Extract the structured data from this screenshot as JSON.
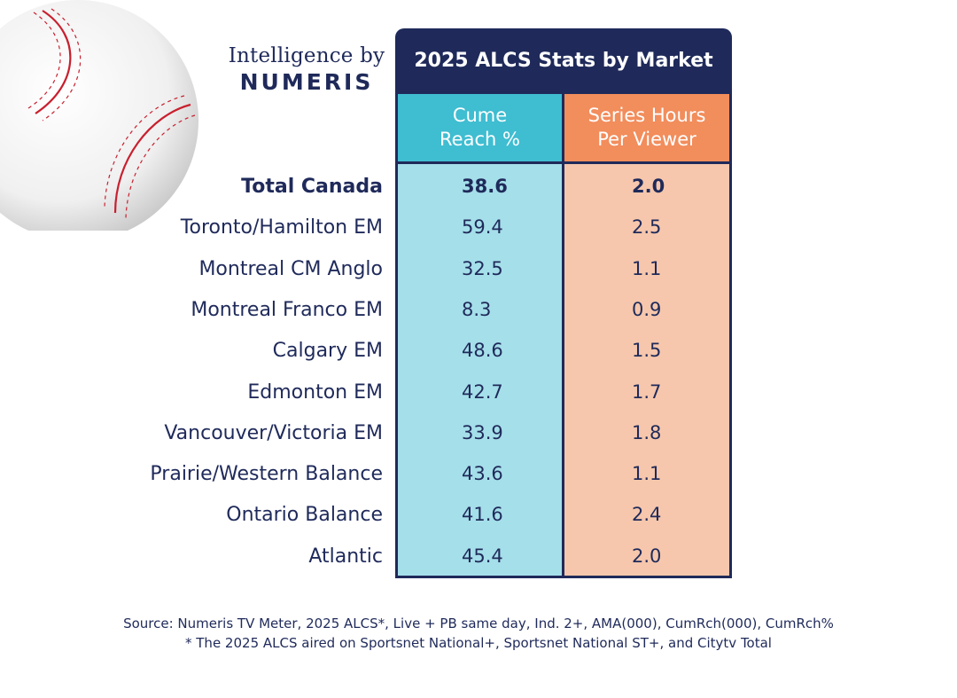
{
  "brand": {
    "line1": "Intelligence by",
    "line2": "NUMERIS"
  },
  "chart_data": {
    "type": "table",
    "title": "2025 ALCS Stats by Market",
    "columns": [
      "Cume Reach %",
      "Series Hours Per Viewer"
    ],
    "column_lines": [
      [
        "Cume",
        "Reach %"
      ],
      [
        "Series Hours",
        "Per Viewer"
      ]
    ],
    "rows": [
      {
        "market": "Total Canada",
        "cume_reach": "38.6",
        "hours_per_viewer": "2.0",
        "bold": true
      },
      {
        "market": "Toronto/Hamilton EM",
        "cume_reach": "59.4",
        "hours_per_viewer": "2.5"
      },
      {
        "market": "Montreal CM Anglo",
        "cume_reach": "32.5",
        "hours_per_viewer": "1.1"
      },
      {
        "market": "Montreal Franco EM",
        "cume_reach": "8.3",
        "hours_per_viewer": "0.9"
      },
      {
        "market": "Calgary EM",
        "cume_reach": "48.6",
        "hours_per_viewer": "1.5"
      },
      {
        "market": "Edmonton EM",
        "cume_reach": "42.7",
        "hours_per_viewer": "1.7"
      },
      {
        "market": "Vancouver/Victoria EM",
        "cume_reach": "33.9",
        "hours_per_viewer": "1.8"
      },
      {
        "market": "Prairie/Western Balance",
        "cume_reach": "43.6",
        "hours_per_viewer": "1.1"
      },
      {
        "market": "Ontario Balance",
        "cume_reach": "41.6",
        "hours_per_viewer": "2.4"
      },
      {
        "market": "Atlantic",
        "cume_reach": "45.4",
        "hours_per_viewer": "2.0"
      }
    ]
  },
  "footnotes": {
    "source": "Source: Numeris TV Meter, 2025 ALCS*, Live + PB same day, Ind. 2+, AMA(000), CumRch(000), CumRch%",
    "note": "* The 2025 ALCS aired on Sportsnet National+, Sportsnet National ST+, and Citytv Total"
  },
  "colors": {
    "navy": "#1f2a5a",
    "cume_header": "#3fbdd1",
    "cume_body": "#a5dfea",
    "hours_header": "#f28d5c",
    "hours_body": "#f6c7ac",
    "stitch_red": "#c8202f"
  },
  "icons": {
    "baseball": "baseball-image"
  }
}
